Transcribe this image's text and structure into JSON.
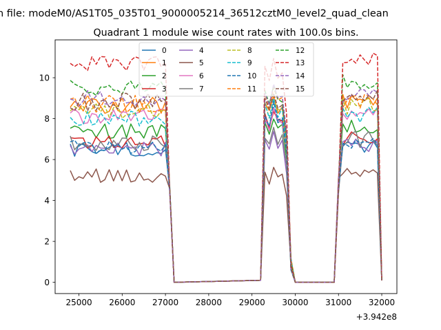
{
  "figure": {
    "suptitle": "n file: modeM0/AS1T05_035T01_9000005214_36512cztM0_level2_quad_clean",
    "offset_label": "+3.942e8"
  },
  "chart_data": {
    "type": "line",
    "title": "Quadrant 1 module wise count rates with 100.0s bins.",
    "xlabel": "",
    "ylabel": "",
    "xlim": [
      24450,
      32350
    ],
    "ylim": [
      -0.55,
      11.85
    ],
    "x_ticks": [
      25000,
      26000,
      27000,
      28000,
      29000,
      30000,
      31000,
      32000
    ],
    "x_tick_labels": [
      "25000",
      "26000",
      "27000",
      "28000",
      "29000",
      "30000",
      "31000",
      "32000"
    ],
    "y_ticks": [
      0,
      2,
      4,
      6,
      8,
      10
    ],
    "y_tick_labels": [
      "0",
      "2",
      "4",
      "6",
      "8",
      "10"
    ],
    "grid": false,
    "legend": {
      "placement": "top-center",
      "ncol": 4
    },
    "segments": [
      {
        "x_start": 24800,
        "x_end": 27000,
        "step": 100
      },
      {
        "x_start": 29300,
        "x_end": 29800,
        "step": 100
      },
      {
        "x_start": 31100,
        "x_end": 31900,
        "step": 100
      }
    ],
    "gap_x": [
      27100,
      27200,
      27300,
      27400,
      27500,
      27600,
      27700,
      27800,
      27900,
      28000,
      28100,
      28200,
      28300,
      28400,
      28500,
      28600,
      28700,
      28800,
      28900,
      29000,
      29100,
      29200,
      29900,
      30000,
      30100,
      30200,
      30300,
      30400,
      30500,
      30600,
      30700,
      30800,
      30900,
      31000,
      32000
    ],
    "gap_values_by_x": {
      "27100": 4.5,
      "27200": 0,
      "29200": 0.1,
      "29900": 1.2,
      "30000": 0,
      "30900": 0,
      "31000": 4.8,
      "32000": 0.1
    },
    "series": [
      {
        "name": "0",
        "color": "#1f77b4",
        "dash": "solid",
        "base": 6.5,
        "amp": 0.35,
        "peak": 8.8
      },
      {
        "name": "1",
        "color": "#ff7f0e",
        "dash": "solid",
        "base": 8.6,
        "amp": 0.45,
        "peak": 9.6
      },
      {
        "name": "2",
        "color": "#2ca02c",
        "dash": "solid",
        "base": 7.4,
        "amp": 0.4,
        "peak": 8.4
      },
      {
        "name": "3",
        "color": "#d62728",
        "dash": "solid",
        "base": 6.9,
        "amp": 0.4,
        "peak": 8.9
      },
      {
        "name": "4",
        "color": "#9467bd",
        "dash": "solid",
        "base": 6.5,
        "amp": 0.35,
        "peak": 7.6
      },
      {
        "name": "5",
        "color": "#8c564b",
        "dash": "solid",
        "base": 5.2,
        "amp": 0.35,
        "peak": 5.7
      },
      {
        "name": "6",
        "color": "#e377c2",
        "dash": "solid",
        "base": 8.1,
        "amp": 0.4,
        "peak": 8.8
      },
      {
        "name": "7",
        "color": "#7f7f7f",
        "dash": "solid",
        "base": 6.8,
        "amp": 0.4,
        "peak": 7.8
      },
      {
        "name": "8",
        "color": "#bcbd22",
        "dash": "dashed",
        "base": 8.4,
        "amp": 0.4,
        "peak": 9.4
      },
      {
        "name": "9",
        "color": "#17becf",
        "dash": "dashed",
        "base": 8.0,
        "amp": 0.4,
        "peak": 9.3
      },
      {
        "name": "10",
        "color": "#1f77b4",
        "dash": "dashed",
        "base": 6.6,
        "amp": 0.35,
        "peak": 9.0
      },
      {
        "name": "11",
        "color": "#ff7f0e",
        "dash": "dashed",
        "base": 8.7,
        "amp": 0.45,
        "peak": 10.0
      },
      {
        "name": "12",
        "color": "#2ca02c",
        "dash": "dashed",
        "base": 9.5,
        "amp": 0.45,
        "peak": 10.0
      },
      {
        "name": "13",
        "color": "#d62728",
        "dash": "dashed",
        "base": 10.7,
        "amp": 0.35,
        "peak": 11.3
      },
      {
        "name": "14",
        "color": "#9467bd",
        "dash": "dashed",
        "base": 9.0,
        "amp": 0.4,
        "peak": 10.2
      },
      {
        "name": "15",
        "color": "#8c564b",
        "dash": "dashed",
        "base": 8.8,
        "amp": 0.45,
        "peak": 9.7
      }
    ]
  }
}
